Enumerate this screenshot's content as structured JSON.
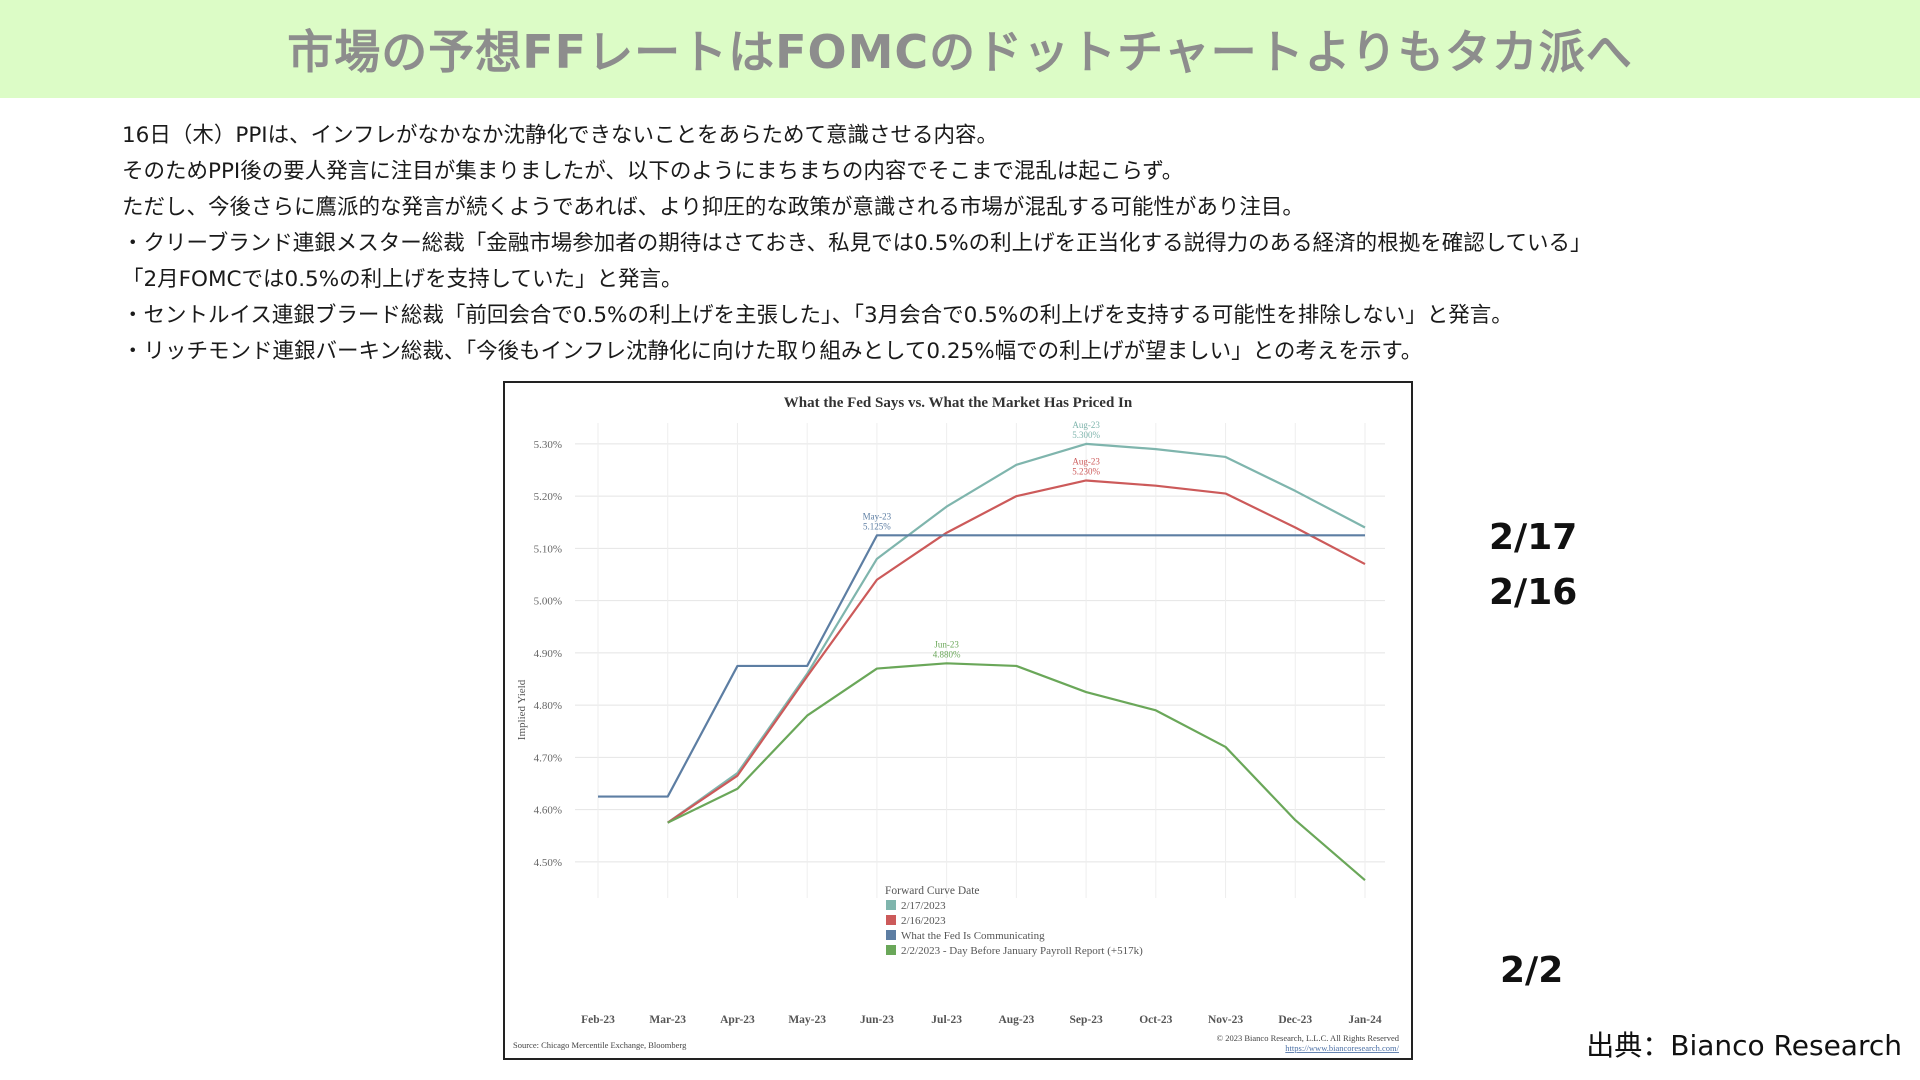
{
  "slide": {
    "title": "市場の予想FFレートはFOMCのドットチャートよりもタカ派へ",
    "paragraphs": [
      "16日（木）PPIは、インフレがなかなか沈静化できないことをあらためて意識させる内容。",
      "そのためPPI後の要人発言に注目が集まりましたが、以下のようにまちまちの内容でそこまで混乱は起こらず。",
      "ただし、今後さらに鷹派的な発言が続くようであれば、より抑圧的な政策が意識される市場が混乱する可能性があり注目。",
      "・クリーブランド連銀メスター総裁「金融市場参加者の期待はさておき、私見では0.5%の利上げを正当化する説得力のある経済的根拠を確認している」",
      "「2月FOMCでは0.5%の利上げを支持していた」と発言。",
      "・セントルイス連銀ブラード総裁「前回会合で0.5%の利上げを主張した」、「3月会合で0.5%の利上げを支持する可能性を排除しない」と発言。",
      "・リッチモンド連銀バーキン総裁、「今後もインフレ沈静化に向けた取り組みとして0.25%幅での利上げが望ましい」との考えを示す。"
    ],
    "side_labels": {
      "feb17": "2/17",
      "feb16": "2/16",
      "feb2": "2/2"
    },
    "source": "出典：Bianco Research"
  },
  "chart_data": {
    "type": "line",
    "title": "What the Fed Says vs. What the Market Has Priced In",
    "ylabel": "Implied Yield",
    "xlabel": "",
    "x": [
      "Feb-23",
      "Mar-23",
      "Apr-23",
      "May-23",
      "Jun-23",
      "Jul-23",
      "Aug-23",
      "Sep-23",
      "Oct-23",
      "Nov-23",
      "Dec-23",
      "Jan-24"
    ],
    "yticks": [
      "4.50%",
      "4.60%",
      "4.70%",
      "4.80%",
      "4.90%",
      "5.00%",
      "5.10%",
      "5.20%",
      "5.30%"
    ],
    "ylim": [
      4.45,
      5.34
    ],
    "grid": true,
    "series": [
      {
        "name": "2/17/2023",
        "color": "#7fb5ad",
        "values": [
          null,
          4.575,
          4.67,
          4.86,
          5.08,
          5.18,
          5.26,
          5.3,
          5.29,
          5.275,
          5.21,
          5.14
        ]
      },
      {
        "name": "2/16/2023",
        "color": "#cc5a5a",
        "values": [
          null,
          4.575,
          4.665,
          4.855,
          5.04,
          5.13,
          5.2,
          5.23,
          5.22,
          5.205,
          5.14,
          5.07
        ]
      },
      {
        "name": "What the Fed Is Communicating",
        "color": "#5d7ea3",
        "step": true,
        "values": [
          4.625,
          4.625,
          4.875,
          4.875,
          5.125,
          5.125,
          5.125,
          5.125,
          5.125,
          5.125,
          5.125,
          5.125
        ]
      },
      {
        "name": "2/2/2023 - Day Before January Payroll Report (+517k)",
        "color": "#6aa759",
        "values": [
          null,
          4.575,
          4.64,
          4.78,
          4.87,
          4.88,
          4.875,
          4.825,
          4.79,
          4.72,
          4.58,
          4.465
        ]
      }
    ],
    "legend": {
      "title": "Forward Curve Date",
      "position": "bottom-center"
    },
    "annotations": [
      {
        "series": 0,
        "x": "Sep-23",
        "label1": "Aug-23",
        "label2": "5.300%"
      },
      {
        "series": 1,
        "x": "Sep-23",
        "label1": "Aug-23",
        "label2": "5.230%"
      },
      {
        "series": 2,
        "x": "Jun-23",
        "label1": "May-23",
        "label2": "5.125%"
      },
      {
        "series": 3,
        "x": "Jul-23",
        "label1": "Jun-23",
        "label2": "4.880%"
      }
    ],
    "footer_left": "Source: Chicago Mercentile Exchange, Bloomberg",
    "footer_right_1": "© 2023 Bianco Research, L.L.C. All Rights Reserved",
    "footer_right_2": "https://www.biancoresearch.com/"
  }
}
